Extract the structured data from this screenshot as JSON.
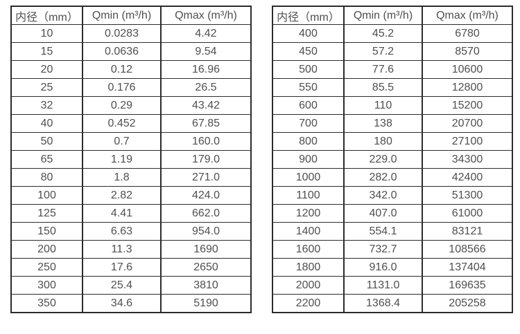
{
  "page": {
    "background_color": "#ffffff",
    "border_color": "#2b2b2b",
    "text_color": "#4f4f4f"
  },
  "tables": [
    {
      "name": "flow-spec-table-small-diameters",
      "headers": [
        "内径（mm）",
        "Qmin (m³/h)",
        "Qmax (m³/h)"
      ],
      "rows": [
        [
          "10",
          "0.0283",
          "4.42"
        ],
        [
          "15",
          "0.0636",
          "9.54"
        ],
        [
          "20",
          "0.12",
          "16.96"
        ],
        [
          "25",
          "0.176",
          "26.5"
        ],
        [
          "32",
          "0.29",
          "43.42"
        ],
        [
          "40",
          "0.452",
          "67.85"
        ],
        [
          "50",
          "0.7",
          "160.0"
        ],
        [
          "65",
          "1.19",
          "179.0"
        ],
        [
          "80",
          "1.8",
          "271.0"
        ],
        [
          "100",
          "2.82",
          "424.0"
        ],
        [
          "125",
          "4.41",
          "662.0"
        ],
        [
          "150",
          "6.63",
          "954.0"
        ],
        [
          "200",
          "11.3",
          "1690"
        ],
        [
          "250",
          "17.6",
          "2650"
        ],
        [
          "300",
          "25.4",
          "3810"
        ],
        [
          "350",
          "34.6",
          "5190"
        ]
      ]
    },
    {
      "name": "flow-spec-table-large-diameters",
      "headers": [
        "内径（mm）",
        "Qmin (m³/h)",
        "Qmax (m³/h)"
      ],
      "rows": [
        [
          "400",
          "45.2",
          "6780"
        ],
        [
          "450",
          "57.2",
          "8570"
        ],
        [
          "500",
          "77.6",
          "10600"
        ],
        [
          "550",
          "85.5",
          "12800"
        ],
        [
          "600",
          "110",
          "15200"
        ],
        [
          "700",
          "138",
          "20700"
        ],
        [
          "800",
          "180",
          "27100"
        ],
        [
          "900",
          "229.0",
          "34300"
        ],
        [
          "1000",
          "282.0",
          "42400"
        ],
        [
          "1100",
          "342.0",
          "51300"
        ],
        [
          "1200",
          "407.0",
          "61000"
        ],
        [
          "1400",
          "554.1",
          "83121"
        ],
        [
          "1600",
          "732.7",
          "108566"
        ],
        [
          "1800",
          "916.0",
          "137404"
        ],
        [
          "2000",
          "1131.0",
          "169635"
        ],
        [
          "2200",
          "1368.4",
          "205258"
        ]
      ]
    }
  ],
  "cell_names": [
    "diameter-cell",
    "qmin-cell",
    "qmax-cell"
  ]
}
